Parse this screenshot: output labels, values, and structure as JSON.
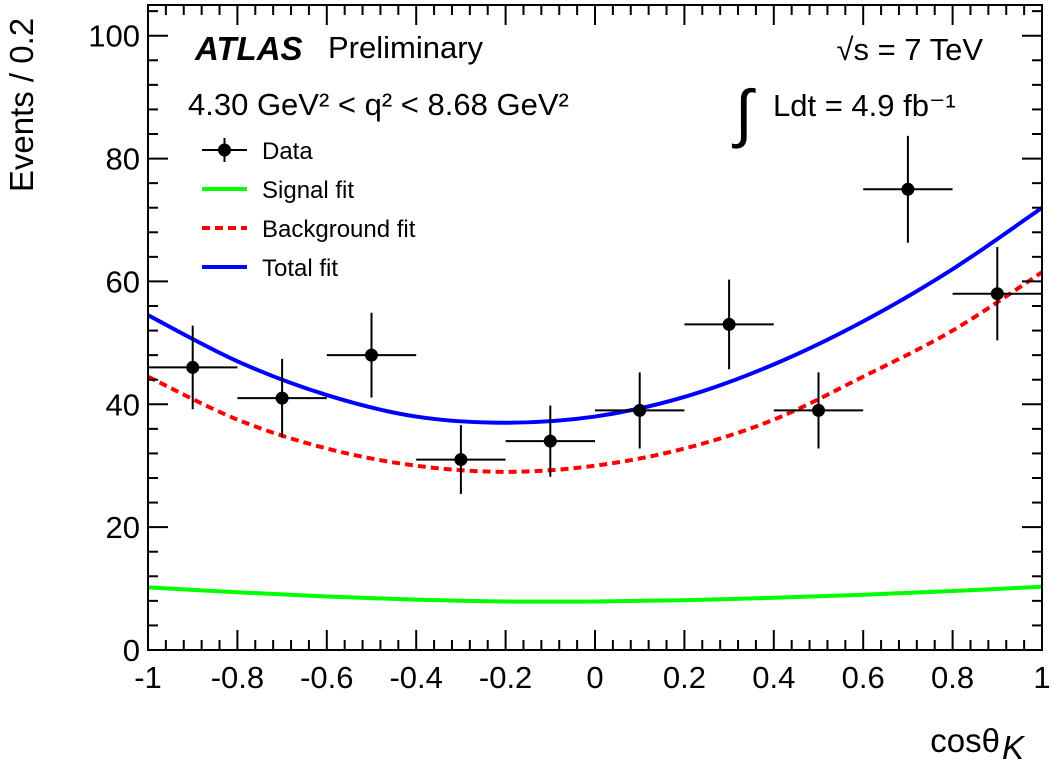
{
  "chart_data": {
    "type": "scatter",
    "xlabel": "cosθ",
    "xlabel_subscript": "K",
    "ylabel": "Events / 0.2",
    "xlim": [
      -1,
      1
    ],
    "ylim": [
      0,
      105
    ],
    "x_ticks": [
      -1,
      -0.8,
      -0.6,
      -0.4,
      -0.2,
      0,
      0.2,
      0.4,
      0.6,
      0.8,
      1
    ],
    "x_tick_labels": [
      "-1",
      "-0.8",
      "-0.6",
      "-0.4",
      "-0.2",
      "0",
      "0.2",
      "0.4",
      "0.6",
      "0.8",
      "1"
    ],
    "y_ticks": [
      0,
      20,
      40,
      60,
      80,
      100
    ],
    "y_tick_labels": [
      "0",
      "20",
      "40",
      "60",
      "80",
      "100"
    ],
    "data_points": {
      "name": "Data",
      "x": [
        -0.9,
        -0.7,
        -0.5,
        -0.3,
        -0.1,
        0.1,
        0.3,
        0.5,
        0.7,
        0.9
      ],
      "y": [
        46,
        41,
        48,
        31,
        34,
        39,
        53,
        39,
        75,
        58
      ],
      "y_err": [
        6.8,
        6.4,
        6.9,
        5.6,
        5.8,
        6.2,
        7.3,
        6.2,
        8.7,
        7.6
      ],
      "x_halfwidth": 0.1,
      "color": "#000000"
    },
    "series": [
      {
        "name": "Signal fit",
        "style": "solid",
        "color": "#00ff00",
        "x": [
          -1,
          -0.8,
          -0.6,
          -0.4,
          -0.2,
          0,
          0.2,
          0.4,
          0.6,
          0.8,
          1
        ],
        "y": [
          10.2,
          9.4,
          8.7,
          8.2,
          7.9,
          7.9,
          8.1,
          8.5,
          9.0,
          9.6,
          10.3
        ]
      },
      {
        "name": "Background fit",
        "style": "dashed",
        "color": "#ff0000",
        "x": [
          -1,
          -0.8,
          -0.6,
          -0.4,
          -0.2,
          0,
          0.2,
          0.4,
          0.6,
          0.8,
          1
        ],
        "y": [
          44.5,
          37.5,
          32.8,
          30.0,
          29.0,
          30.0,
          32.8,
          37.5,
          44.5,
          52.0,
          61.5
        ]
      },
      {
        "name": "Total fit",
        "style": "solid",
        "color": "#0000ff",
        "x": [
          -1,
          -0.8,
          -0.6,
          -0.4,
          -0.2,
          0,
          0.2,
          0.4,
          0.6,
          0.8,
          1
        ],
        "y": [
          54.5,
          47.0,
          41.5,
          38.0,
          37.0,
          38.0,
          41.2,
          46.5,
          53.5,
          62.0,
          72.0
        ]
      }
    ],
    "legend": [
      "Data",
      "Signal fit",
      "Background fit",
      "Total fit"
    ],
    "legend_position": "top-left"
  },
  "annotations": {
    "atlas": "ATLAS",
    "preliminary": "Preliminary",
    "q2_range": "4.30 GeV² < q² < 8.68 GeV²",
    "sqrt_s": "√s = 7 TeV",
    "integral_sign": "∫",
    "luminosity": "Ldt = 4.9 fb⁻¹"
  }
}
